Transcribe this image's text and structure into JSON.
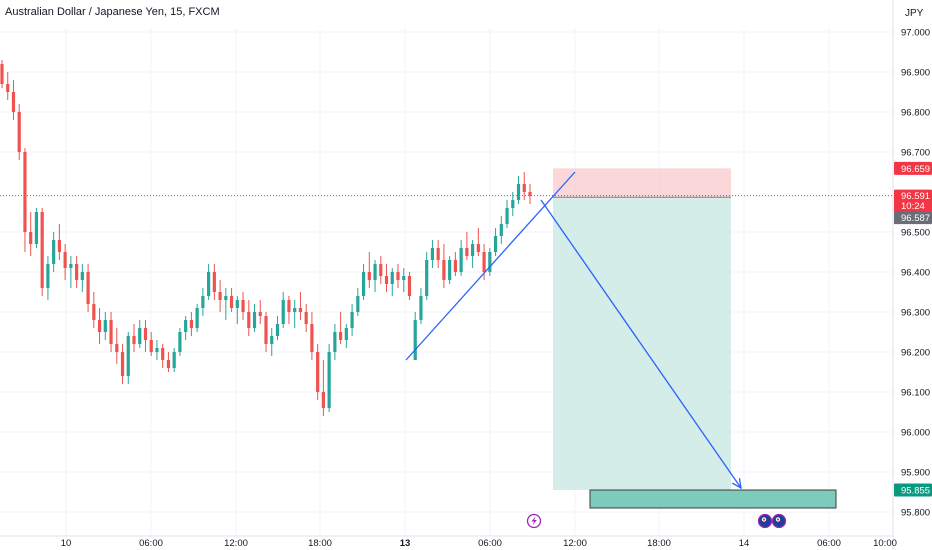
{
  "header": {
    "symbol_title": "Australian Dollar / Japanese Yen, 15, FXCM",
    "currency": "JPY"
  },
  "colors": {
    "up": "#26a69a",
    "down": "#ef5350",
    "candle_up_body": "#26a69a",
    "candle_down_body": "#ef5350",
    "trendline": "#2962ff",
    "stop_zone": "#f8c9cc",
    "target_zone": "#cdeae5",
    "target_box": "#7ccbbd",
    "last_price_label": "#f23645",
    "stop_price_label": "#f23645",
    "target_price_label": "#089981",
    "prev_close_label": "#6a6d78",
    "grid": "#f0f3fa",
    "event_icon": "#9c27b0"
  },
  "price_axis": {
    "ticks": [
      "97.000",
      "96.900",
      "96.800",
      "96.700",
      "96.500",
      "96.400",
      "96.300",
      "96.200",
      "96.100",
      "96.000",
      "95.900",
      "95.800"
    ],
    "tags": {
      "stop": "96.659",
      "last": "96.591",
      "countdown": "10:24",
      "prev": "96.587",
      "target": "95.855"
    }
  },
  "time_axis": {
    "labels": [
      "10",
      "06:00",
      "12:00",
      "18:00",
      "13",
      "06:00",
      "12:00",
      "18:00",
      "14",
      "06:00",
      "10:00"
    ],
    "bold": [
      false,
      false,
      false,
      false,
      true,
      false,
      false,
      false,
      false,
      false,
      false
    ]
  },
  "chart_data": {
    "type": "candlestick",
    "title": "Australian Dollar / Japanese Yen, 15, FXCM",
    "ylim": [
      95.76,
      97.04
    ],
    "ohlc": [
      [
        96.92,
        96.93,
        96.86,
        96.87
      ],
      [
        96.87,
        96.9,
        96.83,
        96.85
      ],
      [
        96.85,
        96.88,
        96.78,
        96.8
      ],
      [
        96.8,
        96.82,
        96.68,
        96.7
      ],
      [
        96.7,
        96.71,
        96.45,
        96.5
      ],
      [
        96.5,
        96.55,
        96.44,
        96.47
      ],
      [
        96.47,
        96.56,
        96.46,
        96.55
      ],
      [
        96.55,
        96.56,
        96.34,
        96.36
      ],
      [
        96.36,
        96.44,
        96.33,
        96.42
      ],
      [
        96.42,
        96.5,
        96.4,
        96.48
      ],
      [
        96.48,
        96.52,
        96.43,
        96.45
      ],
      [
        96.45,
        96.47,
        96.38,
        96.41
      ],
      [
        96.41,
        96.44,
        96.36,
        96.42
      ],
      [
        96.42,
        96.44,
        96.36,
        96.38
      ],
      [
        96.38,
        96.42,
        96.35,
        96.4
      ],
      [
        96.4,
        96.42,
        96.3,
        96.32
      ],
      [
        96.32,
        96.35,
        96.26,
        96.28
      ],
      [
        96.28,
        96.31,
        96.22,
        96.25
      ],
      [
        96.25,
        96.3,
        96.23,
        96.28
      ],
      [
        96.28,
        96.3,
        96.2,
        96.22
      ],
      [
        96.22,
        96.26,
        96.17,
        96.2
      ],
      [
        96.2,
        96.22,
        96.12,
        96.14
      ],
      [
        96.14,
        96.25,
        96.12,
        96.24
      ],
      [
        96.24,
        96.27,
        96.2,
        96.22
      ],
      [
        96.22,
        96.28,
        96.21,
        96.26
      ],
      [
        96.26,
        96.28,
        96.2,
        96.23
      ],
      [
        96.23,
        96.25,
        96.19,
        96.2
      ],
      [
        96.2,
        96.23,
        96.18,
        96.21
      ],
      [
        96.21,
        96.22,
        96.16,
        96.18
      ],
      [
        96.18,
        96.2,
        96.15,
        96.16
      ],
      [
        96.16,
        96.21,
        96.15,
        96.2
      ],
      [
        96.2,
        96.26,
        96.19,
        96.25
      ],
      [
        96.25,
        96.29,
        96.23,
        96.28
      ],
      [
        96.28,
        96.3,
        96.24,
        96.26
      ],
      [
        96.26,
        96.32,
        96.25,
        96.31
      ],
      [
        96.31,
        96.36,
        96.29,
        96.34
      ],
      [
        96.34,
        96.42,
        96.33,
        96.4
      ],
      [
        96.4,
        96.42,
        96.33,
        96.35
      ],
      [
        96.35,
        96.38,
        96.3,
        96.33
      ],
      [
        96.33,
        96.36,
        96.28,
        96.34
      ],
      [
        96.34,
        96.36,
        96.3,
        96.31
      ],
      [
        96.31,
        96.34,
        96.27,
        96.33
      ],
      [
        96.33,
        96.35,
        96.28,
        96.3
      ],
      [
        96.3,
        96.33,
        96.24,
        96.26
      ],
      [
        96.26,
        96.32,
        96.25,
        96.3
      ],
      [
        96.3,
        96.33,
        96.27,
        96.29
      ],
      [
        96.29,
        96.3,
        96.2,
        96.22
      ],
      [
        96.22,
        96.26,
        96.19,
        96.24
      ],
      [
        96.24,
        96.29,
        96.23,
        96.27
      ],
      [
        96.27,
        96.35,
        96.26,
        96.33
      ],
      [
        96.33,
        96.34,
        96.27,
        96.3
      ],
      [
        96.3,
        96.33,
        96.26,
        96.31
      ],
      [
        96.31,
        96.35,
        96.28,
        96.3
      ],
      [
        96.3,
        96.32,
        96.25,
        96.27
      ],
      [
        96.27,
        96.3,
        96.18,
        96.2
      ],
      [
        96.2,
        96.22,
        96.08,
        96.1
      ],
      [
        96.1,
        96.18,
        96.04,
        96.06
      ],
      [
        96.06,
        96.22,
        96.05,
        96.2
      ],
      [
        96.2,
        96.27,
        96.18,
        96.25
      ],
      [
        96.25,
        96.3,
        96.22,
        96.23
      ],
      [
        96.23,
        96.27,
        96.21,
        96.26
      ],
      [
        96.26,
        96.32,
        96.24,
        96.3
      ],
      [
        96.3,
        96.36,
        96.29,
        96.34
      ],
      [
        96.34,
        96.42,
        96.33,
        96.4
      ],
      [
        96.4,
        96.45,
        96.36,
        96.38
      ],
      [
        96.38,
        96.43,
        96.35,
        96.42
      ],
      [
        96.42,
        96.44,
        96.37,
        96.39
      ],
      [
        96.39,
        96.42,
        96.35,
        96.37
      ],
      [
        96.37,
        96.41,
        96.34,
        96.4
      ],
      [
        96.4,
        96.42,
        96.36,
        96.38
      ],
      [
        96.38,
        96.41,
        96.35,
        96.39
      ],
      [
        96.39,
        96.4,
        96.33,
        96.34
      ],
      [
        96.18,
        96.3,
        96.18,
        96.28
      ],
      [
        96.28,
        96.36,
        96.27,
        96.34
      ],
      [
        96.34,
        96.45,
        96.33,
        96.43
      ],
      [
        96.43,
        96.48,
        96.41,
        96.46
      ],
      [
        96.46,
        96.48,
        96.41,
        96.43
      ],
      [
        96.43,
        96.47,
        96.36,
        96.38
      ],
      [
        96.38,
        96.44,
        96.37,
        96.43
      ],
      [
        96.43,
        96.45,
        96.39,
        96.4
      ],
      [
        96.4,
        96.48,
        96.39,
        96.46
      ],
      [
        96.46,
        96.5,
        96.43,
        96.44
      ],
      [
        96.44,
        96.48,
        96.41,
        96.47
      ],
      [
        96.47,
        96.51,
        96.44,
        96.45
      ],
      [
        96.45,
        96.47,
        96.38,
        96.4
      ],
      [
        96.4,
        96.46,
        96.39,
        96.45
      ],
      [
        96.45,
        96.51,
        96.44,
        96.49
      ],
      [
        96.49,
        96.54,
        96.47,
        96.52
      ],
      [
        96.52,
        96.58,
        96.51,
        96.56
      ],
      [
        96.56,
        96.6,
        96.54,
        96.58
      ],
      [
        96.58,
        96.64,
        96.57,
        96.62
      ],
      [
        96.62,
        96.65,
        96.58,
        96.6
      ],
      [
        96.6,
        96.62,
        96.57,
        96.59
      ]
    ],
    "position": {
      "direction": "short",
      "entry": 96.587,
      "stop": 96.659,
      "target": 95.855
    },
    "target_marker_range": [
      95.81,
      95.855
    ],
    "trendline": {
      "from": 96.18,
      "to": 96.65
    },
    "projection_arrow": {
      "from": 96.58,
      "to": 95.86
    }
  }
}
